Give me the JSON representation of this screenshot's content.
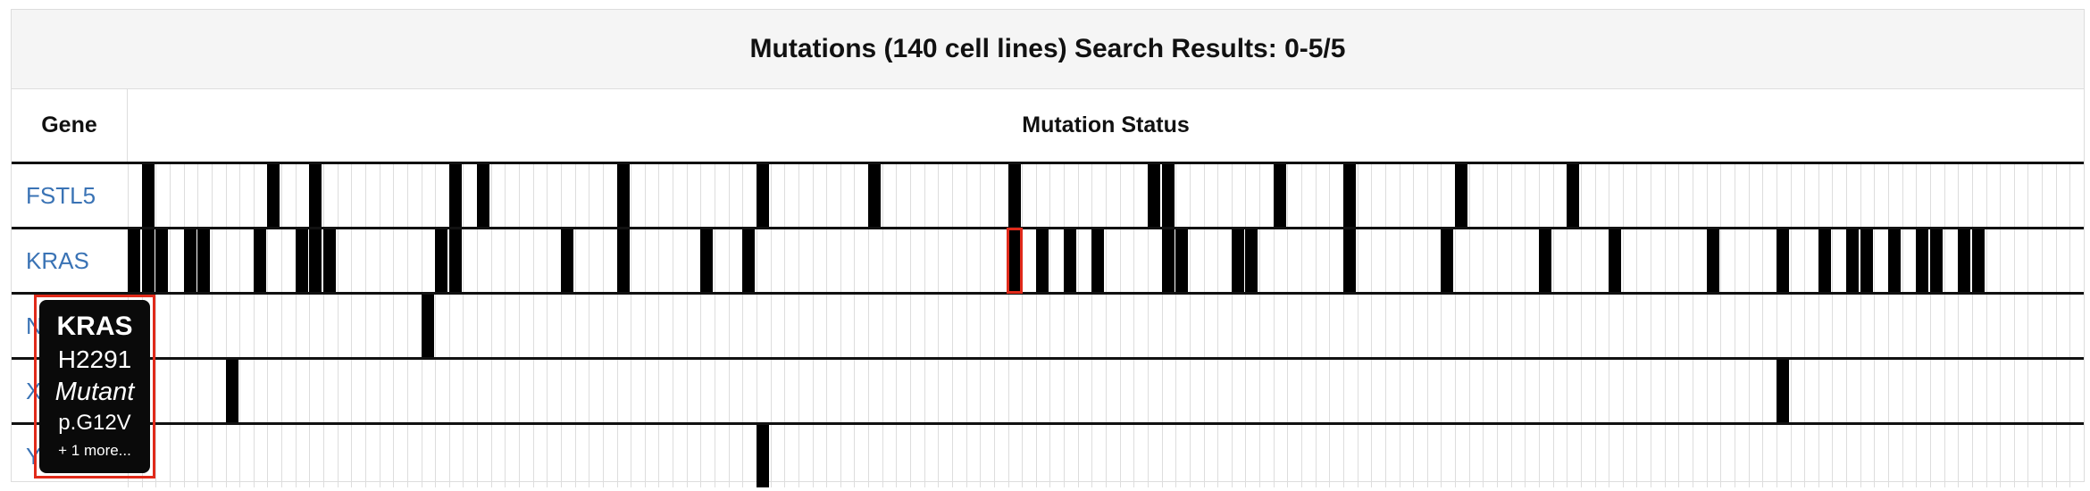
{
  "header": {
    "title": "Mutations (140 cell lines) Search Results: 0-5/5"
  },
  "table": {
    "columns": {
      "gene": "Gene",
      "status": "Mutation Status"
    },
    "cell_line_count": 140,
    "rows": [
      {
        "gene": "FSTL5",
        "mutated": [
          1,
          10,
          13,
          23,
          25,
          35,
          45,
          53,
          63,
          73,
          74,
          82,
          87,
          95,
          103
        ]
      },
      {
        "gene": "KRAS",
        "mutated": [
          0,
          1,
          2,
          4,
          5,
          9,
          12,
          13,
          14,
          22,
          23,
          31,
          35,
          41,
          44,
          63,
          65,
          67,
          69,
          74,
          75,
          79,
          80,
          87,
          94,
          101,
          106,
          113,
          118,
          121,
          123,
          124,
          126,
          128,
          129,
          131,
          132
        ]
      },
      {
        "gene": "NRAS",
        "mutated": [
          21
        ]
      },
      {
        "gene": "XIRP2",
        "mutated": [
          7,
          118
        ]
      },
      {
        "gene": "YEATS4",
        "mutated": [
          45
        ]
      }
    ],
    "highlighted": {
      "row": 1,
      "index": 63
    }
  },
  "tooltip": {
    "gene": "KRAS",
    "cell_line": "H2291",
    "status": "Mutant",
    "change": "p.G12V",
    "more": "+ 1 more..."
  },
  "colors": {
    "mutant": "#000000",
    "wildtype": "#ffffff",
    "gene_link": "#3a73b5",
    "highlight": "#e02a1a",
    "tooltip_bg": "#0a0a0a"
  }
}
